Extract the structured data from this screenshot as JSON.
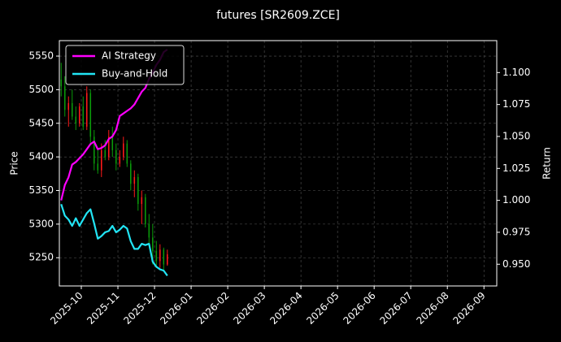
{
  "chart_data": {
    "type": "candlestick",
    "title": "futures [SR2609.ZCE]",
    "ylabel": "Price",
    "y2label": "Return",
    "x": [
      -0.55,
      -0.45,
      -0.35,
      -0.25,
      -0.15,
      -0.05,
      0.05,
      0.15,
      0.25,
      0.35,
      0.45,
      0.55,
      0.65,
      0.75,
      0.85,
      0.95,
      1.05,
      1.15,
      1.25,
      1.35,
      1.45,
      1.55,
      1.65,
      1.75,
      1.85,
      1.95,
      2.05,
      2.15,
      2.25,
      2.35
    ],
    "open": [
      5515,
      5505,
      5470,
      5480,
      5460,
      5450,
      5475,
      5445,
      5495,
      5430,
      5390,
      5380,
      5410,
      5400,
      5430,
      5410,
      5390,
      5400,
      5420,
      5390,
      5360,
      5370,
      5330,
      5340,
      5300,
      5280,
      5260,
      5245,
      5262,
      5240
    ],
    "high": [
      5540,
      5520,
      5490,
      5500,
      5475,
      5480,
      5490,
      5505,
      5500,
      5440,
      5410,
      5420,
      5425,
      5440,
      5445,
      5420,
      5410,
      5430,
      5425,
      5395,
      5380,
      5375,
      5350,
      5345,
      5315,
      5300,
      5275,
      5270,
      5265,
      5262
    ],
    "low": [
      5490,
      5460,
      5445,
      5455,
      5440,
      5445,
      5440,
      5440,
      5420,
      5380,
      5375,
      5370,
      5395,
      5395,
      5400,
      5380,
      5385,
      5395,
      5385,
      5350,
      5340,
      5320,
      5300,
      5295,
      5270,
      5240,
      5235,
      5235,
      5232,
      5238
    ],
    "close": [
      5505,
      5470,
      5480,
      5460,
      5450,
      5475,
      5445,
      5495,
      5430,
      5390,
      5380,
      5410,
      5400,
      5430,
      5410,
      5390,
      5400,
      5420,
      5390,
      5360,
      5370,
      5330,
      5340,
      5300,
      5280,
      5260,
      5245,
      5262,
      5240,
      5255
    ],
    "up_color": "#ff1a1a",
    "down_color": "#0a9a0a",
    "series": [
      {
        "name": "AI Strategy",
        "color": "#ff00ff",
        "axis": "y2",
        "values": [
          1.0,
          1.012,
          1.018,
          1.028,
          1.03,
          1.033,
          1.036,
          1.04,
          1.044,
          1.046,
          1.04,
          1.041,
          1.043,
          1.048,
          1.05,
          1.055,
          1.066,
          1.068,
          1.07,
          1.072,
          1.075,
          1.08,
          1.085,
          1.088,
          1.095,
          1.1,
          1.106,
          1.11,
          1.116,
          1.118
        ]
      },
      {
        "name": "Buy-and-Hold",
        "color": "#22e5f5",
        "axis": "y2",
        "values": [
          0.997,
          0.988,
          0.985,
          0.98,
          0.986,
          0.98,
          0.985,
          0.99,
          0.993,
          0.982,
          0.97,
          0.972,
          0.975,
          0.976,
          0.98,
          0.975,
          0.977,
          0.98,
          0.978,
          0.968,
          0.962,
          0.962,
          0.966,
          0.965,
          0.966,
          0.952,
          0.948,
          0.946,
          0.945,
          0.941
        ]
      }
    ],
    "xlim": [
      -0.6,
      11.35
    ],
    "xticks": [
      {
        "value": 0,
        "label": "2025-10"
      },
      {
        "value": 1,
        "label": "2025-11"
      },
      {
        "value": 2,
        "label": "2025-12"
      },
      {
        "value": 3,
        "label": "2026-01"
      },
      {
        "value": 4,
        "label": "2026-02"
      },
      {
        "value": 5,
        "label": "2026-03"
      },
      {
        "value": 6,
        "label": "2026-04"
      },
      {
        "value": 7,
        "label": "2026-05"
      },
      {
        "value": 8,
        "label": "2026-06"
      },
      {
        "value": 9,
        "label": "2026-07"
      },
      {
        "value": 10,
        "label": "2026-08"
      },
      {
        "value": 11,
        "label": "2026-09"
      }
    ],
    "ylim": [
      5208,
      5573
    ],
    "yticks": [
      5250,
      5300,
      5350,
      5400,
      5450,
      5500,
      5550
    ],
    "y2lim": [
      0.933,
      1.125
    ],
    "y2ticks": [
      {
        "value": 0.95,
        "label": "0.950"
      },
      0.975,
      {
        "value": 1.0,
        "label": "1.000"
      },
      1.025,
      {
        "value": 1.05,
        "label": "1.050"
      },
      1.075,
      {
        "value": 1.1,
        "label": "1.100"
      }
    ],
    "grid": true,
    "legend": "upper left"
  }
}
